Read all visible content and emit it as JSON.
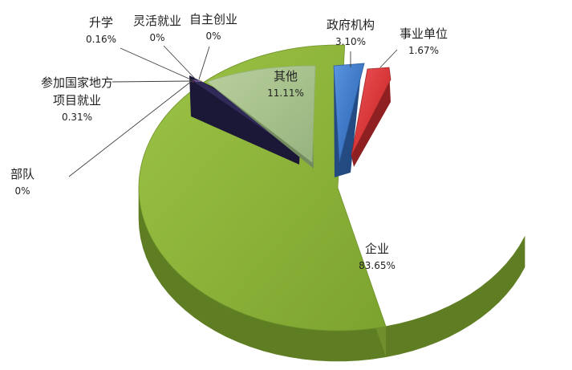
{
  "chart_data": {
    "type": "pie",
    "title": "",
    "slices": [
      {
        "name": "企业",
        "value": 83.65,
        "label": "83.65%",
        "color": "#8db33a",
        "dark": "#5f7d22"
      },
      {
        "name": "其他",
        "value": 11.11,
        "label": "11.11%",
        "color": "#a8c28d",
        "dark": "#748b5f"
      },
      {
        "name": "政府机构",
        "value": 3.1,
        "label": "3.10%",
        "color": "#3f79c6",
        "dark": "#244a82"
      },
      {
        "name": "事业单位",
        "value": 1.67,
        "label": "1.67%",
        "color": "#d9383a",
        "dark": "#8e2022"
      },
      {
        "name": "升学",
        "value": 0.16,
        "label": "0.16%",
        "color": "#6f4f8f",
        "dark": "#45305a"
      },
      {
        "name": "灵活就业",
        "value": 0.0,
        "label": "0%",
        "color": "#4ca6c2",
        "dark": "#2d6f82"
      },
      {
        "name": "自主创业",
        "value": 0.0,
        "label": "0%",
        "color": "#f0a344",
        "dark": "#a76921"
      },
      {
        "name": "参加国家地方\n项目就业",
        "value": 0.31,
        "label": "0.31%",
        "color": "#2f2a57",
        "dark": "#1b1736"
      },
      {
        "name": "部队",
        "value": 0.0,
        "label": "0%",
        "color": "#6d2f3d",
        "dark": "#442029"
      }
    ]
  }
}
